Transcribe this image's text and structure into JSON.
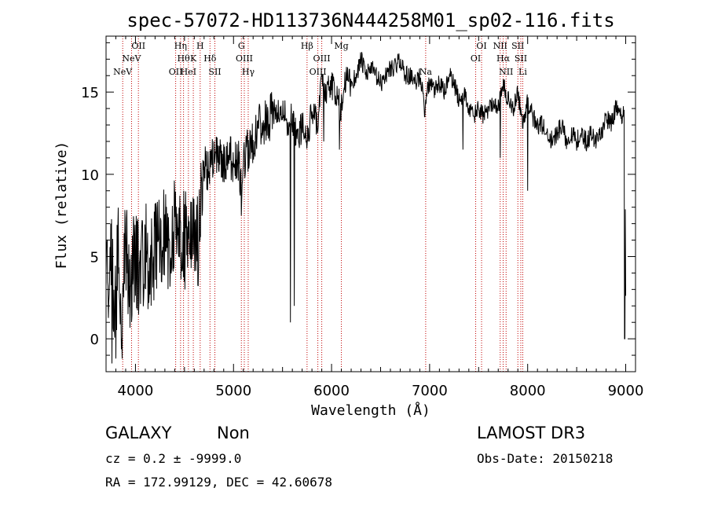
{
  "chart_data": {
    "type": "line",
    "title": "spec-57072-HD113736N444258M01_sp02-116.fits",
    "xlabel": "Wavelength (Å)",
    "ylabel": "Flux (relative)",
    "xlim": [
      3700,
      9100
    ],
    "ylim": [
      -2,
      18.4
    ],
    "xticks": [
      4000,
      5000,
      6000,
      7000,
      8000,
      9000
    ],
    "yticks": [
      0,
      5,
      10,
      15
    ],
    "grid": false,
    "spectrum_anchors": [
      [
        3700,
        5.5
      ],
      [
        3720,
        2.0
      ],
      [
        3750,
        6.5
      ],
      [
        3790,
        0.5
      ],
      [
        3820,
        5.5
      ],
      [
        3860,
        1.5
      ],
      [
        3900,
        6.0
      ],
      [
        3950,
        3.0
      ],
      [
        4000,
        5.5
      ],
      [
        4050,
        3.5
      ],
      [
        4100,
        6.0
      ],
      [
        4150,
        4.0
      ],
      [
        4200,
        6.0
      ],
      [
        4260,
        5.0
      ],
      [
        4300,
        6.5
      ],
      [
        4360,
        4.5
      ],
      [
        4400,
        7.0
      ],
      [
        4420,
        4.5
      ],
      [
        4450,
        6.5
      ],
      [
        4500,
        6.0
      ],
      [
        4550,
        6.5
      ],
      [
        4600,
        5.5
      ],
      [
        4650,
        6.5
      ],
      [
        4670,
        8.0
      ],
      [
        4700,
        10.5
      ],
      [
        4750,
        10.0
      ],
      [
        4800,
        11.5
      ],
      [
        4850,
        11.0
      ],
      [
        4900,
        10.5
      ],
      [
        4950,
        11.5
      ],
      [
        5000,
        10.5
      ],
      [
        5050,
        11.0
      ],
      [
        5080,
        9.0
      ],
      [
        5100,
        11.0
      ],
      [
        5150,
        11.5
      ],
      [
        5200,
        12.0
      ],
      [
        5250,
        13.0
      ],
      [
        5300,
        13.2
      ],
      [
        5350,
        13.0
      ],
      [
        5400,
        14.0
      ],
      [
        5450,
        13.5
      ],
      [
        5500,
        14.0
      ],
      [
        5550,
        13.0
      ],
      [
        5600,
        13.5
      ],
      [
        5650,
        12.0
      ],
      [
        5700,
        13.0
      ],
      [
        5750,
        12.0
      ],
      [
        5800,
        14.0
      ],
      [
        5850,
        13.0
      ],
      [
        5900,
        15.5
      ],
      [
        5950,
        15.0
      ],
      [
        6000,
        15.5
      ],
      [
        6050,
        14.5
      ],
      [
        6100,
        14.0
      ],
      [
        6150,
        16.0
      ],
      [
        6200,
        15.5
      ],
      [
        6250,
        16.0
      ],
      [
        6300,
        17.0
      ],
      [
        6350,
        16.0
      ],
      [
        6400,
        16.5
      ],
      [
        6450,
        16.0
      ],
      [
        6500,
        15.5
      ],
      [
        6550,
        16.0
      ],
      [
        6600,
        16.5
      ],
      [
        6650,
        16.5
      ],
      [
        6700,
        17.0
      ],
      [
        6750,
        16.0
      ],
      [
        6800,
        16.0
      ],
      [
        6850,
        15.5
      ],
      [
        6900,
        16.0
      ],
      [
        6950,
        14.5
      ],
      [
        7000,
        15.5
      ],
      [
        7050,
        15.0
      ],
      [
        7100,
        15.5
      ],
      [
        7150,
        15.0
      ],
      [
        7200,
        16.0
      ],
      [
        7250,
        15.5
      ],
      [
        7300,
        14.5
      ],
      [
        7350,
        15.0
      ],
      [
        7400,
        14.0
      ],
      [
        7450,
        13.5
      ],
      [
        7500,
        14.0
      ],
      [
        7550,
        13.5
      ],
      [
        7600,
        14.0
      ],
      [
        7650,
        14.5
      ],
      [
        7700,
        14.0
      ],
      [
        7750,
        15.5
      ],
      [
        7800,
        14.5
      ],
      [
        7850,
        14.0
      ],
      [
        7900,
        15.0
      ],
      [
        7950,
        13.0
      ],
      [
        8000,
        14.5
      ],
      [
        8050,
        13.5
      ],
      [
        8100,
        13.0
      ],
      [
        8150,
        13.0
      ],
      [
        8200,
        12.5
      ],
      [
        8250,
        12.0
      ],
      [
        8300,
        12.5
      ],
      [
        8350,
        13.0
      ],
      [
        8400,
        12.0
      ],
      [
        8450,
        12.5
      ],
      [
        8500,
        12.0
      ],
      [
        8550,
        12.5
      ],
      [
        8600,
        12.0
      ],
      [
        8650,
        12.5
      ],
      [
        8700,
        12.0
      ],
      [
        8750,
        12.5
      ],
      [
        8800,
        13.5
      ],
      [
        8850,
        13.0
      ],
      [
        8900,
        14.0
      ],
      [
        8950,
        13.5
      ],
      [
        8990,
        14.0
      ],
      [
        9000,
        3.0
      ]
    ],
    "absorption_dips": [
      [
        3760,
        -1.5
      ],
      [
        3800,
        -1.2
      ],
      [
        5080,
        7.5
      ],
      [
        5580,
        1.0
      ],
      [
        5620,
        2.0
      ],
      [
        5920,
        12.0
      ],
      [
        6080,
        11.5
      ],
      [
        6950,
        13.5
      ],
      [
        7340,
        11.5
      ],
      [
        7720,
        11.0
      ],
      [
        8000,
        9.0
      ],
      [
        8990,
        0.0
      ]
    ],
    "emission_lines": [
      {
        "wavelength": 3870,
        "label": "NeV",
        "row": 3
      },
      {
        "wavelength": 3960,
        "label": "NeV",
        "row": 2
      },
      {
        "wavelength": 4030,
        "label": "OII",
        "row": 1
      },
      {
        "wavelength": 4410,
        "label": "OII",
        "row": 3
      },
      {
        "wavelength": 4460,
        "label": "Hη",
        "row": 1
      },
      {
        "wavelength": 4490,
        "label": "Hθ",
        "row": 2
      },
      {
        "wavelength": 4540,
        "label": "HeI",
        "row": 3
      },
      {
        "wavelength": 4590,
        "label": "K",
        "row": 2
      },
      {
        "wavelength": 4660,
        "label": "H",
        "row": 1
      },
      {
        "wavelength": 4760,
        "label": "Hδ",
        "row": 2
      },
      {
        "wavelength": 4810,
        "label": "SII",
        "row": 3
      },
      {
        "wavelength": 5080,
        "label": "G",
        "row": 1
      },
      {
        "wavelength": 5110,
        "label": "OIII",
        "row": 2
      },
      {
        "wavelength": 5150,
        "label": "Hγ",
        "row": 3
      },
      {
        "wavelength": 5750,
        "label": "Hβ",
        "row": 1
      },
      {
        "wavelength": 5860,
        "label": "OIII",
        "row": 3
      },
      {
        "wavelength": 5900,
        "label": "OIII",
        "row": 2
      },
      {
        "wavelength": 6100,
        "label": "Mg",
        "row": 1
      },
      {
        "wavelength": 6960,
        "label": "Na",
        "row": 3
      },
      {
        "wavelength": 7470,
        "label": "OI",
        "row": 2
      },
      {
        "wavelength": 7530,
        "label": "OI",
        "row": 1
      },
      {
        "wavelength": 7720,
        "label": "NII",
        "row": 1
      },
      {
        "wavelength": 7750,
        "label": "Hα",
        "row": 2
      },
      {
        "wavelength": 7780,
        "label": "NII",
        "row": 3
      },
      {
        "wavelength": 7900,
        "label": "SII",
        "row": 1
      },
      {
        "wavelength": 7930,
        "label": "SII",
        "row": 2
      },
      {
        "wavelength": 7950,
        "label": "Li",
        "row": 3
      }
    ]
  },
  "info": {
    "object_class": "GALAXY",
    "subclass": "Non",
    "redshift": "cz = 0.2 ± -9999.0",
    "coords": "RA = 172.99129, DEC =  42.60678",
    "survey": "LAMOST DR3",
    "obs_date": "Obs-Date: 20150218"
  },
  "colors": {
    "spectrum": "#000000",
    "line_markers": "#c00000",
    "axes": "#000000",
    "background": "#ffffff"
  }
}
